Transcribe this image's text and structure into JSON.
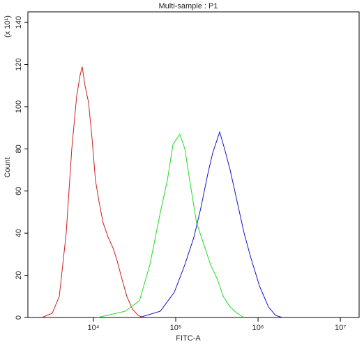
{
  "chart_data": {
    "type": "line",
    "title": "Multi-sample : P1",
    "x_label": "FITC-A",
    "y_label": "Count",
    "y_multiplier": "(x 10¹)",
    "log_x": true,
    "xlim": [
      1600,
      16900000
    ],
    "xticks": [
      {
        "value": 10000,
        "label": "10⁴"
      },
      {
        "value": 100000,
        "label": "10⁵"
      },
      {
        "value": 1000000,
        "label": "10⁶"
      },
      {
        "value": 10000000,
        "label": "10⁷"
      }
    ],
    "ylim": [
      0,
      145
    ],
    "yticks": [
      0,
      20,
      40,
      60,
      80,
      100,
      120,
      140
    ],
    "series": [
      {
        "color": "#cc1f1f",
        "x": [
          2360,
          3160,
          3850,
          4670,
          5460,
          6260,
          6900,
          7310,
          7910,
          8730,
          9620,
          10600,
          11700,
          13100,
          15100,
          17300,
          19400,
          22300,
          25500,
          29800,
          34900,
          40000
        ],
        "values": [
          0,
          2,
          10,
          40,
          80,
          105,
          115,
          119,
          110,
          102,
          85,
          65,
          55,
          45,
          38,
          33,
          27,
          18,
          10,
          4,
          1,
          0
        ]
      },
      {
        "color": "#22dd22",
        "x": [
          11200,
          24500,
          36300,
          48500,
          65100,
          79100,
          92500,
          112000,
          129000,
          148000,
          179000,
          218000,
          265000,
          322000,
          377000,
          458000,
          557000,
          677000
        ],
        "values": [
          0,
          3,
          8,
          25,
          50,
          65,
          82,
          87,
          80,
          65,
          45,
          35,
          25,
          18,
          10,
          5,
          2,
          0
        ]
      },
      {
        "color": "#1414cc",
        "x": [
          36300,
          65100,
          96200,
          129000,
          166000,
          202000,
          245000,
          281000,
          342000,
          392000,
          458000,
          557000,
          677000,
          822000,
          1040000,
          1340000,
          1630000,
          1980000
        ],
        "values": [
          0,
          3,
          12,
          25,
          38,
          52,
          68,
          78,
          88,
          80,
          70,
          55,
          40,
          28,
          15,
          5,
          1,
          0
        ]
      }
    ]
  }
}
